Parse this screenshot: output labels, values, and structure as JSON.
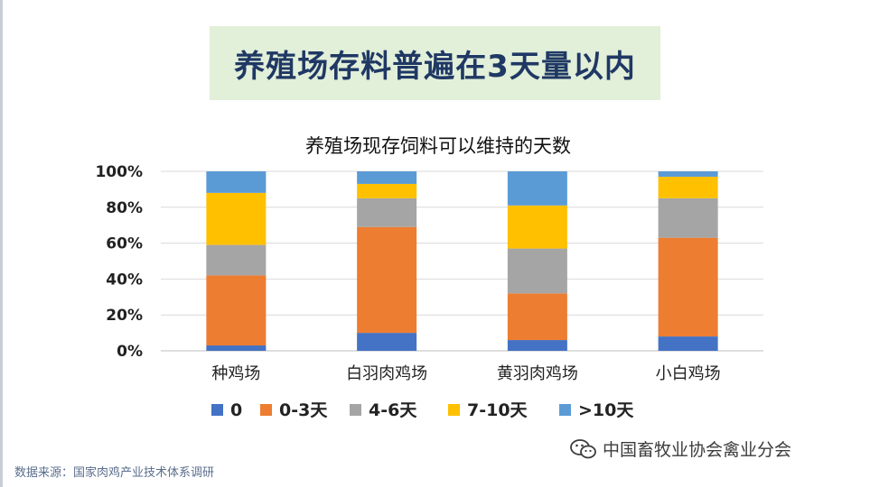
{
  "slide_title": "养殖场存料普遍在3天量以内",
  "source": "数据来源：国家肉鸡产业技术体系调研",
  "watermark": "中国畜牧业协会禽业分会",
  "watermark_icon": "wechat-icon",
  "chart_data": {
    "type": "bar",
    "stacked": true,
    "title": "养殖场现存饲料可以维持的天数",
    "categories": [
      "种鸡场",
      "白羽肉鸡场",
      "黄羽肉鸡场",
      "小白鸡场"
    ],
    "ylim": [
      0,
      100
    ],
    "yticks": [
      "0%",
      "20%",
      "40%",
      "60%",
      "80%",
      "100%"
    ],
    "grid": true,
    "legend_position": "bottom",
    "series": [
      {
        "name": "0",
        "color": "#4472c4",
        "values": [
          3,
          10,
          6,
          8
        ]
      },
      {
        "name": "0-3天",
        "color": "#ed7d31",
        "values": [
          39,
          59,
          26,
          55
        ]
      },
      {
        "name": "4-6天",
        "color": "#a5a5a5",
        "values": [
          17,
          16,
          25,
          22
        ]
      },
      {
        "name": "7-10天",
        "color": "#ffc000",
        "values": [
          29,
          8,
          24,
          12
        ]
      },
      {
        "name": ">10天",
        "color": "#5b9bd5",
        "values": [
          12,
          7,
          19,
          3
        ]
      }
    ]
  }
}
